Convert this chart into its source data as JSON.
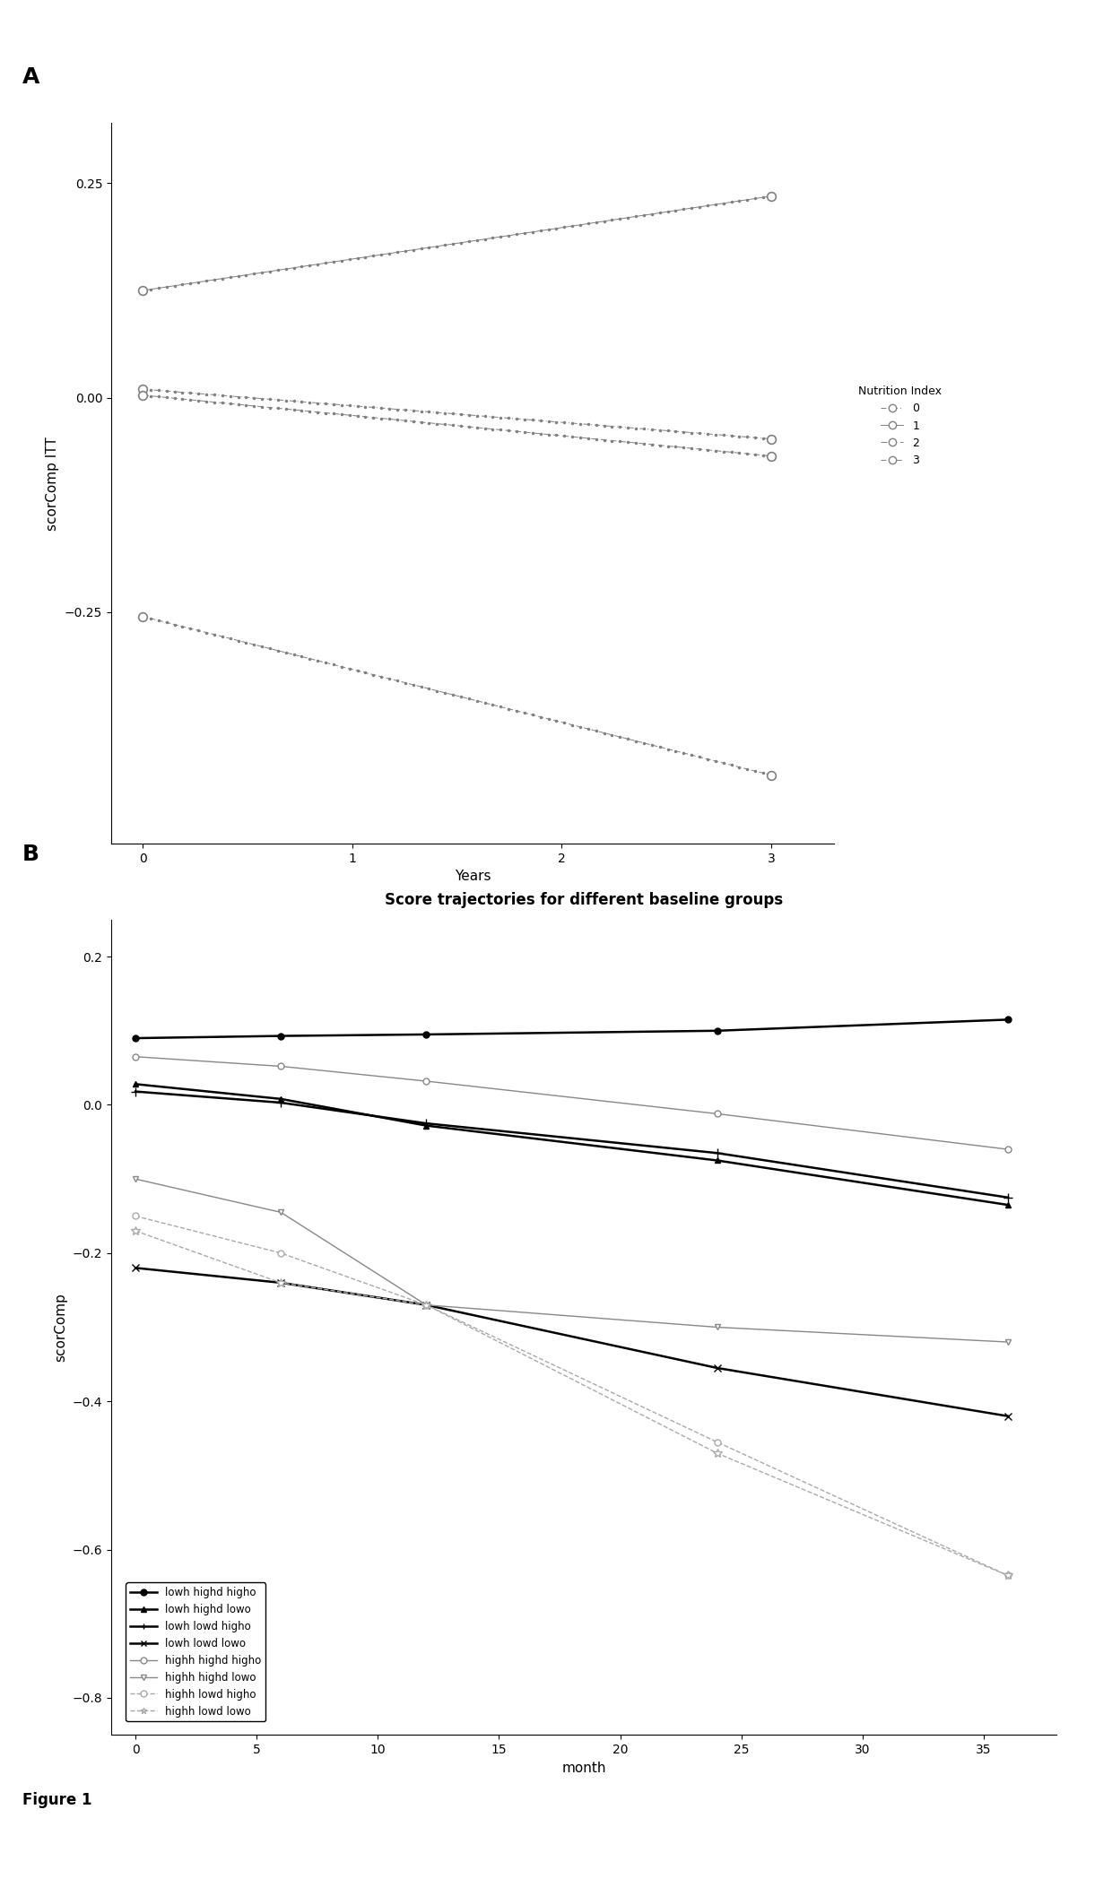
{
  "panel_A": {
    "xlabel": "Years",
    "ylabel": "scorComp ITT",
    "legend_title": "Nutrition Index",
    "xlim": [
      -0.15,
      3.3
    ],
    "ylim": [
      -0.52,
      0.32
    ],
    "yticks": [
      0.25,
      0.0,
      -0.25
    ],
    "xticks": [
      0,
      1,
      2,
      3
    ],
    "series": [
      {
        "label": "0",
        "x": [
          0,
          3
        ],
        "y": [
          0.01,
          -0.048
        ],
        "linestyle": "dashdot",
        "color": "#808080",
        "marker": "o",
        "markersize": 7
      },
      {
        "label": "1",
        "x": [
          0,
          3
        ],
        "y": [
          0.125,
          0.235
        ],
        "linestyle": "solid_dense",
        "color": "#808080",
        "marker": "o",
        "markersize": 7
      },
      {
        "label": "2",
        "x": [
          0,
          3
        ],
        "y": [
          0.003,
          -0.068
        ],
        "linestyle": "dashed",
        "color": "#808080",
        "marker": "o",
        "markersize": 7
      },
      {
        "label": "3",
        "x": [
          0,
          3
        ],
        "y": [
          -0.255,
          -0.44
        ],
        "linestyle": "dashed2",
        "color": "#808080",
        "marker": "o",
        "markersize": 7
      }
    ]
  },
  "panel_B": {
    "title": "Score trajectories for different baseline groups",
    "xlabel": "month",
    "ylabel": "scorComp",
    "xlim": [
      -1,
      38
    ],
    "ylim": [
      -0.85,
      0.25
    ],
    "yticks": [
      0.2,
      0.0,
      -0.2,
      -0.4,
      -0.6,
      -0.8
    ],
    "xticks": [
      0,
      5,
      10,
      15,
      20,
      25,
      30,
      35
    ],
    "series": [
      {
        "label": "lowh highd higho",
        "x": [
          0,
          6,
          12,
          24,
          36
        ],
        "y": [
          0.09,
          0.093,
          0.095,
          0.1,
          0.115
        ],
        "color": "#000000",
        "marker": "o",
        "markersize": 5,
        "linewidth": 1.8,
        "linestyle": "-",
        "mfc": "#000000"
      },
      {
        "label": "lowh highd lowo",
        "x": [
          0,
          6,
          12,
          24,
          36
        ],
        "y": [
          0.028,
          0.008,
          -0.028,
          -0.075,
          -0.135
        ],
        "color": "#000000",
        "marker": "^",
        "markersize": 5,
        "linewidth": 1.8,
        "linestyle": "-",
        "mfc": "#000000"
      },
      {
        "label": "lowh lowd higho",
        "x": [
          0,
          6,
          12,
          24,
          36
        ],
        "y": [
          0.018,
          0.003,
          -0.025,
          -0.065,
          -0.125
        ],
        "color": "#000000",
        "marker": "+",
        "markersize": 7,
        "linewidth": 1.8,
        "linestyle": "-",
        "mfc": "#000000"
      },
      {
        "label": "lowh lowd lowo",
        "x": [
          0,
          6,
          12,
          24,
          36
        ],
        "y": [
          -0.22,
          -0.24,
          -0.27,
          -0.355,
          -0.42
        ],
        "color": "#000000",
        "marker": "x",
        "markersize": 6,
        "linewidth": 1.8,
        "linestyle": "-",
        "mfc": "#000000"
      },
      {
        "label": "highh highd higho",
        "x": [
          0,
          6,
          12,
          24,
          36
        ],
        "y": [
          0.065,
          0.052,
          0.032,
          -0.012,
          -0.06
        ],
        "color": "#888888",
        "marker": "o",
        "markersize": 5,
        "linewidth": 1.0,
        "linestyle": "-",
        "mfc": "white"
      },
      {
        "label": "highh highd lowo",
        "x": [
          0,
          6,
          12,
          24,
          36
        ],
        "y": [
          -0.1,
          -0.145,
          -0.27,
          -0.3,
          -0.32
        ],
        "color": "#888888",
        "marker": "v",
        "markersize": 5,
        "linewidth": 1.0,
        "linestyle": "-",
        "mfc": "white"
      },
      {
        "label": "highh lowd higho",
        "x": [
          0,
          6,
          12,
          24,
          36
        ],
        "y": [
          -0.15,
          -0.2,
          -0.27,
          -0.455,
          -0.635
        ],
        "color": "#aaaaaa",
        "marker": "o",
        "markersize": 5,
        "linewidth": 1.0,
        "linestyle": "--",
        "mfc": "white"
      },
      {
        "label": "highh lowd lowo",
        "x": [
          0,
          6,
          12,
          24,
          36
        ],
        "y": [
          -0.17,
          -0.24,
          -0.27,
          -0.47,
          -0.635
        ],
        "color": "#aaaaaa",
        "marker": "*",
        "markersize": 7,
        "linewidth": 1.0,
        "linestyle": "--",
        "mfc": "white"
      }
    ]
  }
}
